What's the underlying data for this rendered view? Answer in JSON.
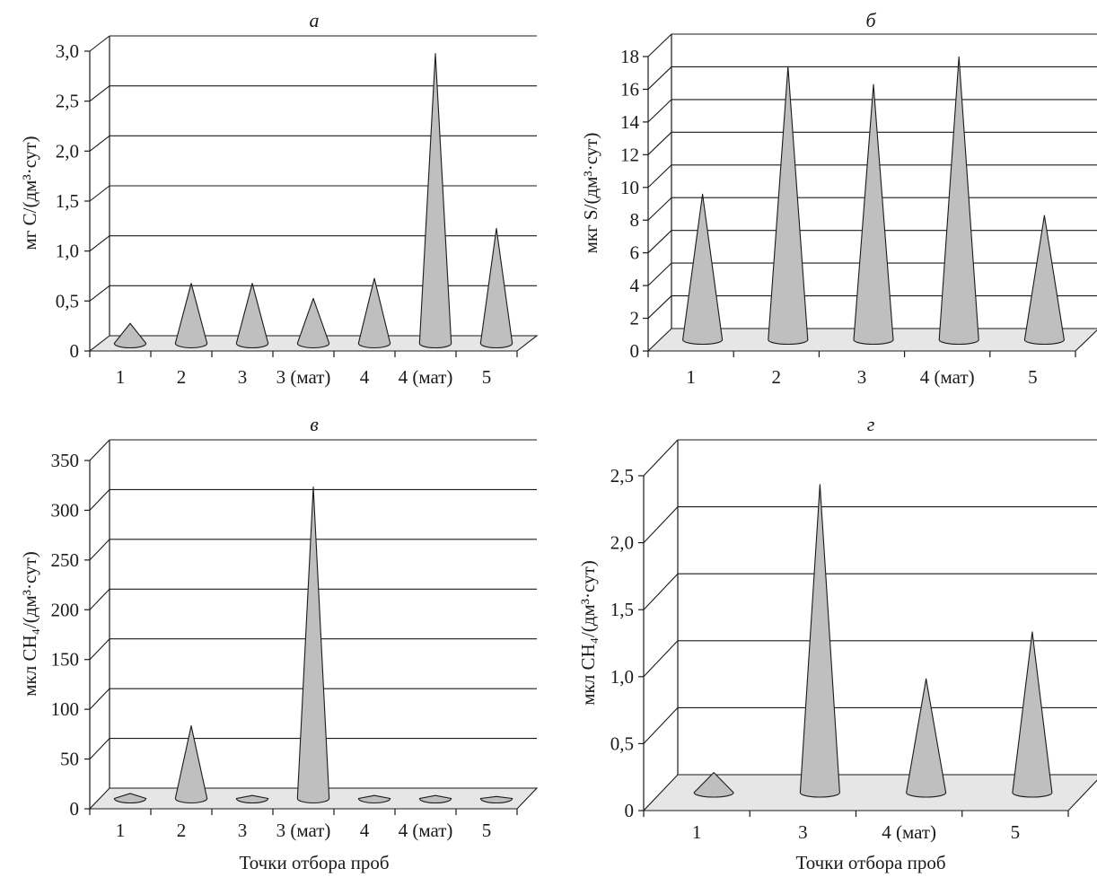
{
  "chart_data": [
    {
      "type": "bar",
      "mark": "cone",
      "title": "а",
      "ylabel": "мг C/(дм³·сут)",
      "xlabel": "",
      "ylim": [
        0,
        3.0
      ],
      "yticks": [
        "0",
        "0,5",
        "1,0",
        "1,5",
        "2,0",
        "2,5",
        "3,0"
      ],
      "categories": [
        "1",
        "2",
        "3",
        "3 (мат)",
        "4",
        "4 (мат)",
        "5"
      ],
      "values": [
        0.2,
        0.6,
        0.6,
        0.45,
        0.65,
        2.9,
        1.15
      ]
    },
    {
      "type": "bar",
      "mark": "cone",
      "title": "б",
      "ylabel": "мкг S/(дм³·сут)",
      "xlabel": "",
      "ylim": [
        0,
        18
      ],
      "yticks": [
        "0",
        "2",
        "4",
        "6",
        "8",
        "10",
        "12",
        "14",
        "16",
        "18"
      ],
      "categories": [
        "1",
        "2",
        "3",
        "4 (мат)",
        "5"
      ],
      "values": [
        8.9,
        16.7,
        15.6,
        17.3,
        7.6
      ]
    },
    {
      "type": "bar",
      "mark": "cone",
      "title": "в",
      "ylabel": "мкл CH₄/(дм³·сут)",
      "xlabel": "Точки отбора проб",
      "ylim": [
        0,
        350
      ],
      "yticks": [
        "0",
        "50",
        "100",
        "150",
        "200",
        "250",
        "300",
        "350"
      ],
      "categories": [
        "1",
        "2",
        "3",
        "3 (мат)",
        "4",
        "4 (мат)",
        "5"
      ],
      "values": [
        5,
        73,
        3,
        313,
        3,
        3,
        2
      ]
    },
    {
      "type": "bar",
      "mark": "cone",
      "title": "г",
      "ylabel": "мкл CH₄/(дм³·сут)",
      "xlabel": "Точки отбора проб",
      "ylim": [
        0,
        2.5
      ],
      "yticks": [
        "0",
        "0,5",
        "1,0",
        "1,5",
        "2,0",
        "2,5"
      ],
      "categories": [
        "1",
        "3",
        "4 (мат)",
        "5"
      ],
      "values": [
        0.15,
        2.3,
        0.85,
        1.2
      ]
    }
  ]
}
